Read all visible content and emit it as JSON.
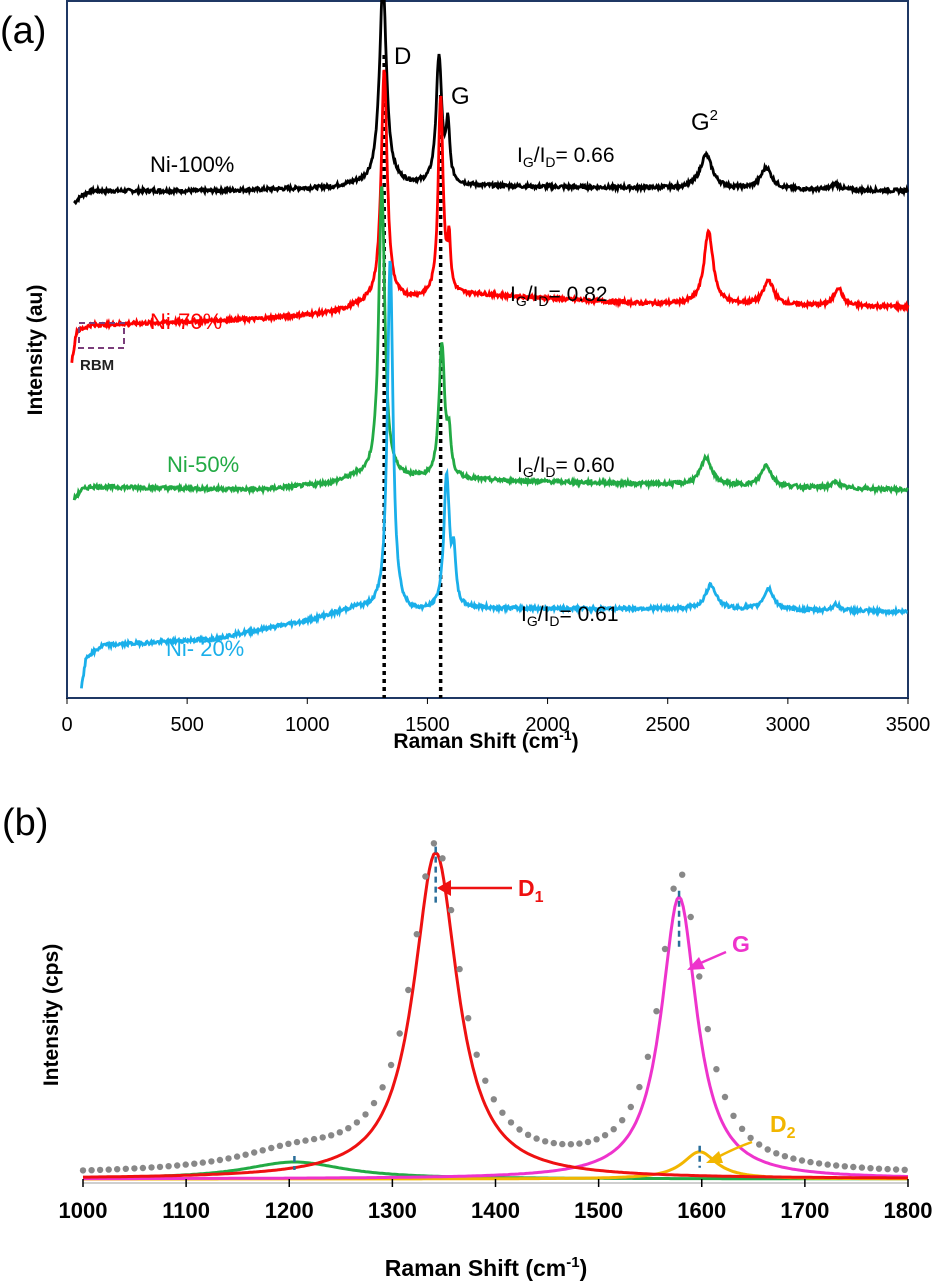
{
  "chart_data": [
    {
      "panel": "(a)",
      "type": "line",
      "xlabel": "Raman Shift (cm",
      "xlabel_sup": "-1",
      "xlabel_end": ")",
      "ylabel": "Intensity (au)",
      "xlim": [
        0,
        3500
      ],
      "xticks": [
        "0",
        "500",
        "1000",
        "1500",
        "2000",
        "2500",
        "3000",
        "3500"
      ],
      "reference_lines": [
        {
          "label": "D",
          "x": 1320
        },
        {
          "label": "G",
          "x": 1555
        },
        {
          "label": "G",
          "label_sup": "2",
          "x": 2700
        }
      ],
      "rbm_label": "RBM",
      "series": [
        {
          "name": "Ni-100%",
          "color": "#000000",
          "ratio_prefix": "I",
          "ratio_sub1": "G",
          "ratio_mid": "/I",
          "ratio_sub2": "D",
          "ratio_value": "= 0.66",
          "offset": 0.795,
          "baseline": [
            [
              30,
              0.0
            ],
            [
              60,
              0.012
            ],
            [
              100,
              0.02
            ],
            [
              600,
              0.02
            ],
            [
              1100,
              0.025
            ],
            [
              1200,
              0.03
            ],
            [
              3500,
              0.02
            ]
          ],
          "peaks": [
            [
              1315,
              0.33,
              35
            ],
            [
              1548,
              0.21,
              28
            ],
            [
              1585,
              0.09,
              18
            ],
            [
              2660,
              0.055,
              60
            ],
            [
              2910,
              0.035,
              55
            ],
            [
              3200,
              0.01,
              40
            ]
          ]
        },
        {
          "name": "Ni-70%",
          "color": "#ff0000",
          "ratio_prefix": "I",
          "ratio_sub1": "G",
          "ratio_mid": "/I",
          "ratio_sub2": "D",
          "ratio_value": "= 0.82",
          "offset": 0.555,
          "baseline": [
            [
              20,
              -0.02
            ],
            [
              40,
              0.03
            ],
            [
              100,
              0.04
            ],
            [
              800,
              0.05
            ],
            [
              1100,
              0.06
            ],
            [
              1250,
              0.075
            ],
            [
              1700,
              0.09
            ],
            [
              2400,
              0.075
            ],
            [
              3500,
              0.07
            ]
          ],
          "peaks": [
            [
              1320,
              0.38,
              30
            ],
            [
              1555,
              0.33,
              24
            ],
            [
              1590,
              0.08,
              15
            ],
            [
              2670,
              0.12,
              45
            ],
            [
              2920,
              0.04,
              50
            ],
            [
              3210,
              0.03,
              40
            ]
          ]
        },
        {
          "name": "Ni-50%",
          "color": "#22aa44",
          "ratio_prefix": "I",
          "ratio_sub1": "G",
          "ratio_mid": "/I",
          "ratio_sub2": "D",
          "ratio_value": "= 0.60",
          "offset": 0.315,
          "baseline": [
            [
              30,
              -0.005
            ],
            [
              60,
              0.01
            ],
            [
              100,
              0.015
            ],
            [
              800,
              0.01
            ],
            [
              1100,
              0.02
            ],
            [
              1200,
              0.03
            ],
            [
              3500,
              0.01
            ]
          ],
          "peaks": [
            [
              1310,
              0.48,
              30
            ],
            [
              1560,
              0.22,
              28
            ],
            [
              1590,
              0.06,
              18
            ],
            [
              2660,
              0.045,
              55
            ],
            [
              2910,
              0.035,
              50
            ],
            [
              3200,
              0.01,
              40
            ]
          ]
        },
        {
          "name": "Ni- 20%",
          "color": "#1aafea",
          "ratio_prefix": "I",
          "ratio_sub1": "G",
          "ratio_mid": "/I",
          "ratio_sub2": "D",
          "ratio_value": "= 0.61",
          "offset": 0.0,
          "baseline": [
            [
              60,
              0.0
            ],
            [
              80,
              0.05
            ],
            [
              150,
              0.07
            ],
            [
              600,
              0.08
            ],
            [
              1000,
              0.11
            ],
            [
              1200,
              0.13
            ],
            [
              1400,
              0.12
            ],
            [
              1700,
              0.13
            ],
            [
              2400,
              0.13
            ],
            [
              3500,
              0.125
            ]
          ],
          "peaks": [
            [
              1345,
              0.58,
              28
            ],
            [
              1580,
              0.22,
              28
            ],
            [
              1610,
              0.08,
              18
            ],
            [
              2680,
              0.04,
              55
            ],
            [
              2920,
              0.035,
              50
            ],
            [
              3200,
              0.01,
              40
            ]
          ]
        }
      ]
    },
    {
      "panel": "(b)",
      "type": "line",
      "xlabel": "Raman Shift (cm",
      "xlabel_sup": "-1",
      "xlabel_end": ")",
      "ylabel": "Intensity (cps)",
      "xlim": [
        1000,
        1800
      ],
      "xticks": [
        "1000",
        "1100",
        "1200",
        "1300",
        "1400",
        "1500",
        "1600",
        "1700",
        "1800"
      ],
      "ylim": [
        0,
        1
      ],
      "components": [
        {
          "name": "D",
          "name_sub": "1",
          "color": "#ee1111",
          "center": 1342,
          "height": 0.96,
          "width": 52
        },
        {
          "name": "G",
          "name_sub": "",
          "color": "#ee33cc",
          "center": 1578,
          "height": 0.83,
          "width": 42
        },
        {
          "name": "D",
          "name_sub": "2",
          "color": "#f2b600",
          "center": 1598,
          "height": 0.08,
          "width": 40
        },
        {
          "name": "",
          "name_sub": "",
          "color": "#22aa44",
          "center": 1205,
          "height": 0.05,
          "width": 120
        }
      ],
      "measured_color": "#888888",
      "peak_markers": [
        1342,
        1578,
        1598,
        1205
      ]
    }
  ]
}
